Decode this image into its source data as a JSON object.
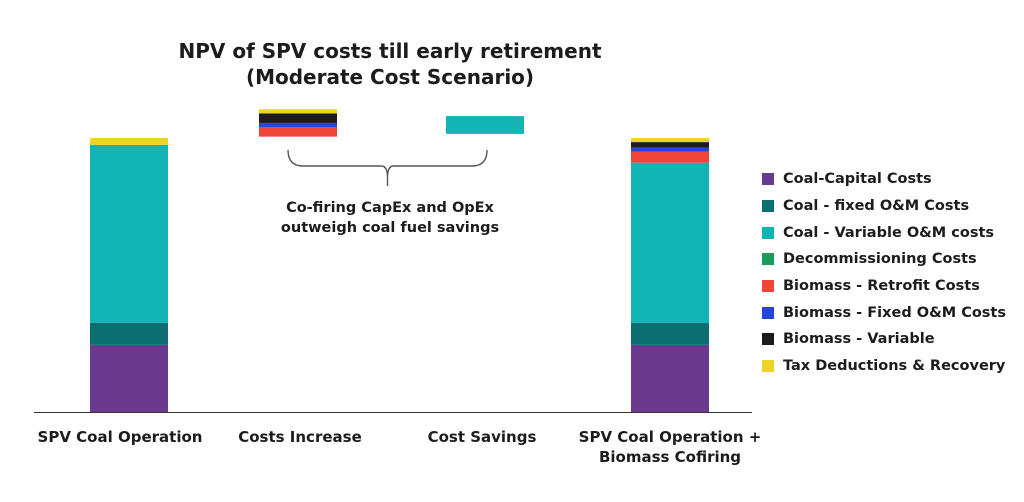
{
  "chart_data": {
    "type": "waterfall-stacked-bar",
    "title_line1": "NPV of SPV costs till early retirement",
    "title_line2": "(Moderate Cost Scenario)",
    "categories": [
      "SPV Coal Operation",
      "Costs Increase",
      "Cost Savings",
      "SPV Coal Operation + Biomass Cofiring"
    ],
    "category_lines": [
      [
        "SPV Coal Operation"
      ],
      [
        "Costs Increase"
      ],
      [
        "Cost Savings"
      ],
      [
        "SPV Coal Operation +",
        "Biomass Cofiring"
      ]
    ],
    "ylim": [
      0,
      100
    ],
    "series": [
      {
        "name": "Coal-Capital Costs",
        "color": "#6a3a8f"
      },
      {
        "name": "Coal - fixed O&M Costs",
        "color": "#0d6e72"
      },
      {
        "name": "Coal - Variable O&M costs",
        "color": "#13b5b4"
      },
      {
        "name": "Decommissioning Costs",
        "color": "#1a9a58"
      },
      {
        "name": "Biomass - Retrofit Costs",
        "color": "#f0463a"
      },
      {
        "name": "Biomass - Fixed O&M Costs",
        "color": "#2446d6"
      },
      {
        "name": "Biomass - Variable",
        "color": "#1c1c1c"
      },
      {
        "name": "Tax Deductions & Recovery",
        "color": "#ecd527"
      }
    ],
    "bars": [
      {
        "category_index": 0,
        "segments": [
          {
            "series": "Coal-Capital Costs",
            "value": 24.5
          },
          {
            "series": "Coal - fixed O&M Costs",
            "value": 8
          },
          {
            "series": "Coal - Variable O&M costs",
            "value": 65
          },
          {
            "series": "Tax Deductions & Recovery",
            "value": 2.5
          }
        ]
      },
      {
        "category_index": 1,
        "base": 100.5,
        "segments": [
          {
            "series": "Biomass - Retrofit Costs",
            "value": 3.5
          },
          {
            "series": "Biomass - Fixed O&M Costs",
            "value": 1.5
          },
          {
            "series": "Biomass - Variable",
            "value": 3.5
          },
          {
            "series": "Tax Deductions & Recovery",
            "value": 1.5
          }
        ]
      },
      {
        "category_index": 2,
        "base": 101.5,
        "segments": [
          {
            "series": "Coal - Variable O&M costs",
            "value": 6.5
          }
        ]
      },
      {
        "category_index": 3,
        "segments": [
          {
            "series": "Coal-Capital Costs",
            "value": 24.5
          },
          {
            "series": "Coal - fixed O&M Costs",
            "value": 8
          },
          {
            "series": "Coal - Variable O&M costs",
            "value": 58.5
          },
          {
            "series": "Biomass - Retrofit Costs",
            "value": 4
          },
          {
            "series": "Biomass - Fixed O&M Costs",
            "value": 1.5
          },
          {
            "series": "Biomass - Variable",
            "value": 2
          },
          {
            "series": "Tax Deductions & Recovery",
            "value": 1.5
          }
        ]
      }
    ],
    "annotation": {
      "line1": "Co-firing CapEx and OpEx",
      "line2": "outweigh coal fuel savings",
      "spans_categories": [
        1,
        2
      ]
    },
    "legend_position": "right"
  }
}
